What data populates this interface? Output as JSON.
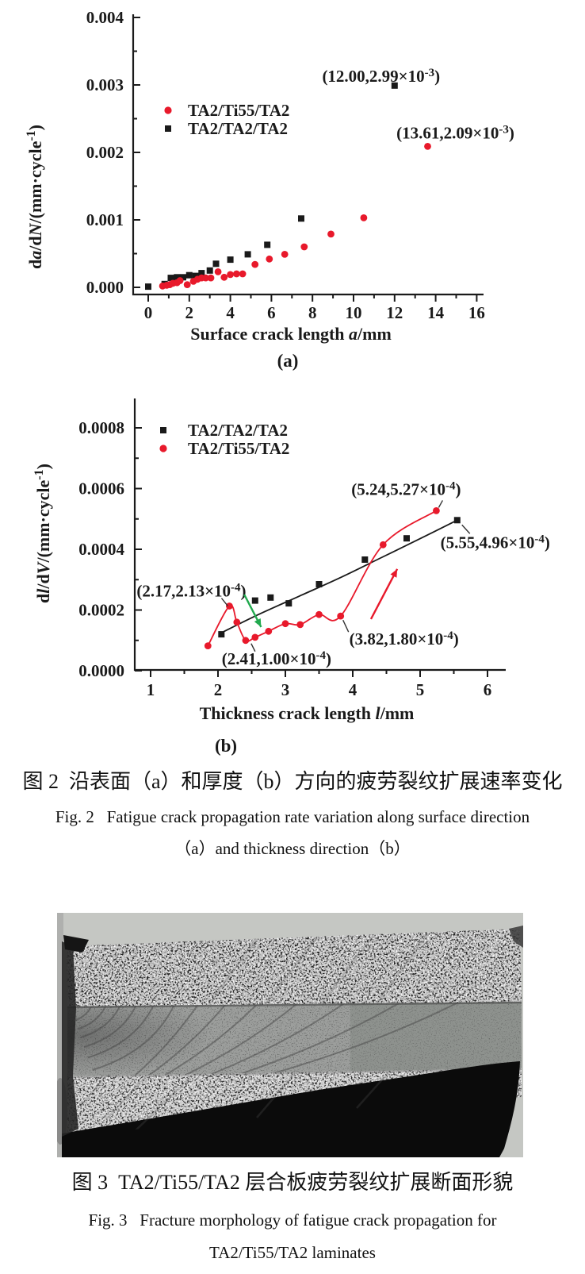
{
  "colors": {
    "red": "#e8192b",
    "black": "#1a1a1a",
    "green": "#21a94e",
    "annotation_line": "#333333"
  },
  "chart_data": [
    {
      "id": "a",
      "type": "scatter",
      "title": "",
      "sublabel": "(a)",
      "xlabel_parts": [
        {
          "t": "Surface crack length "
        },
        {
          "t": "a",
          "italic": true
        },
        {
          "t": "/mm"
        }
      ],
      "ylabel_parts": [
        {
          "t": "d"
        },
        {
          "t": "a",
          "italic": true
        },
        {
          "t": "/d"
        },
        {
          "t": "N",
          "italic": true
        },
        {
          "t": "/(mm·cycle"
        },
        {
          "t": "-1",
          "sup": true
        },
        {
          "t": ")"
        }
      ],
      "xlim": [
        0,
        16.3
      ],
      "ylim": [
        0,
        0.004
      ],
      "xticks": [
        0,
        2,
        4,
        6,
        8,
        10,
        12,
        14,
        16
      ],
      "xtick_labels": [
        "0",
        "2",
        "4",
        "6",
        "8",
        "10",
        "12",
        "14",
        "16"
      ],
      "xticks_minor": [
        1,
        3,
        5,
        7,
        9,
        11,
        13,
        15
      ],
      "yticks": [
        0,
        0.001,
        0.002,
        0.003,
        0.004
      ],
      "ytick_labels": [
        "0.000",
        "0.001",
        "0.002",
        "0.003",
        "0.004"
      ],
      "yticks_minor": [
        0.0005,
        0.0015,
        0.0025,
        0.0035
      ],
      "grid": false,
      "legend_position": "upper-left-inside",
      "legend": [
        {
          "label": "TA2/Ti55/TA2",
          "marker": "circle",
          "color": "red"
        },
        {
          "label": "TA2/TA2/TA2",
          "marker": "square",
          "color": "black"
        }
      ],
      "series": [
        {
          "name": "TA2/TA2/TA2",
          "marker": "square",
          "color": "black",
          "points": [
            [
              0,
              1e-05
            ],
            [
              0.8,
              5e-05
            ],
            [
              1.1,
              0.00014
            ],
            [
              1.4,
              0.00015
            ],
            [
              1.7,
              0.00015
            ],
            [
              2.0,
              0.00018
            ],
            [
              2.3,
              0.00017
            ],
            [
              2.6,
              0.00021
            ],
            [
              3.0,
              0.00025
            ],
            [
              3.3,
              0.00035
            ],
            [
              4.0,
              0.00041
            ],
            [
              4.85,
              0.00049
            ],
            [
              5.8,
              0.00063
            ],
            [
              7.45,
              0.00102
            ],
            [
              12.0,
              0.00299
            ]
          ]
        },
        {
          "name": "TA2/Ti55/TA2",
          "marker": "circle",
          "color": "red",
          "points": [
            [
              0.7,
              2e-05
            ],
            [
              0.9,
              3e-05
            ],
            [
              1.05,
              4e-05
            ],
            [
              1.2,
              6e-05
            ],
            [
              1.4,
              7e-05
            ],
            [
              1.55,
              0.0001
            ],
            [
              1.9,
              4e-05
            ],
            [
              2.2,
              9e-05
            ],
            [
              2.4,
              0.00012
            ],
            [
              2.6,
              0.00014
            ],
            [
              2.8,
              0.00014
            ],
            [
              3.05,
              0.00014
            ],
            [
              3.4,
              0.00023
            ],
            [
              3.7,
              0.00015
            ],
            [
              4.0,
              0.00019
            ],
            [
              4.3,
              0.0002
            ],
            [
              4.6,
              0.0002
            ],
            [
              5.2,
              0.00034
            ],
            [
              5.9,
              0.00042
            ],
            [
              6.65,
              0.00049
            ],
            [
              7.6,
              0.0006
            ],
            [
              8.9,
              0.00079
            ],
            [
              10.5,
              0.00103
            ],
            [
              13.61,
              0.00209
            ]
          ]
        }
      ],
      "annotations": [
        {
          "pre": "(12.00,2.99×10",
          "sup": "-3",
          "post": ")",
          "point": [
            12.0,
            0.00299
          ],
          "label_offset": [
            -17,
            -5
          ]
        },
        {
          "pre": "(13.61,2.09×10",
          "sup": "-3",
          "post": ")",
          "point": [
            13.61,
            0.00209
          ],
          "label_offset": [
            35,
            -10
          ]
        }
      ]
    },
    {
      "id": "b",
      "type": "scatter-line",
      "title": "",
      "sublabel": "(b)",
      "xlabel_parts": [
        {
          "t": "Thickness crack length "
        },
        {
          "t": "l",
          "italic": true
        },
        {
          "t": "/mm"
        }
      ],
      "ylabel_parts": [
        {
          "t": "d"
        },
        {
          "t": "l",
          "italic": true
        },
        {
          "t": "/d"
        },
        {
          "t": "V",
          "italic": true
        },
        {
          "t": "/(mm·cycle"
        },
        {
          "t": "-1",
          "sup": true
        },
        {
          "t": ")"
        }
      ],
      "xlim": [
        0.76,
        6.27
      ],
      "ylim": [
        0,
        0.0009
      ],
      "xticks": [
        1,
        2,
        3,
        4,
        5,
        6
      ],
      "xtick_labels": [
        "1",
        "2",
        "3",
        "4",
        "5",
        "6"
      ],
      "xticks_minor": [
        1.5,
        2.5,
        3.5,
        4.5,
        5.5
      ],
      "yticks": [
        0,
        0.0002,
        0.0004,
        0.0006,
        0.0008
      ],
      "ytick_labels": [
        "0.0000",
        "0.0002",
        "0.0004",
        "0.0006",
        "0.0008"
      ],
      "yticks_minor": [
        0.0001,
        0.0003,
        0.0005,
        0.0007
      ],
      "grid": false,
      "legend_position": "upper-left-inside",
      "legend": [
        {
          "label": "TA2/TA2/TA2",
          "marker": "square",
          "color": "black"
        },
        {
          "label": "TA2/Ti55/TA2",
          "marker": "circle",
          "color": "red"
        }
      ],
      "series": [
        {
          "name": "TA2/TA2/TA2",
          "marker": "square",
          "color": "black",
          "points": [
            [
              2.05,
              0.00012
            ],
            [
              2.55,
              0.000231
            ],
            [
              2.78,
              0.000241
            ],
            [
              3.05,
              0.000222
            ],
            [
              3.5,
              0.000285
            ],
            [
              4.18,
              0.000366
            ],
            [
              4.8,
              0.000436
            ],
            [
              5.55,
              0.000496
            ]
          ],
          "fit": [
            [
              2.05,
              0.000125
            ],
            [
              2.6,
              0.000185
            ],
            [
              3.2,
              0.000245
            ],
            [
              3.8,
              0.000305
            ],
            [
              4.4,
              0.00037
            ],
            [
              5.0,
              0.000435
            ],
            [
              5.55,
              0.000496
            ]
          ]
        },
        {
          "name": "TA2/Ti55/TA2",
          "marker": "circle",
          "color": "red",
          "points": [
            [
              1.85,
              8.2e-05
            ],
            [
              2.17,
              0.000213
            ],
            [
              2.28,
              0.00016
            ],
            [
              2.41,
              0.0001
            ],
            [
              2.55,
              0.00011
            ],
            [
              2.75,
              0.00013
            ],
            [
              3.0,
              0.000155
            ],
            [
              3.22,
              0.000152
            ],
            [
              3.5,
              0.000185
            ],
            [
              3.82,
              0.00018
            ],
            [
              4.45,
              0.000415
            ],
            [
              5.24,
              0.000527
            ]
          ],
          "fit": "points"
        }
      ],
      "annotations": [
        {
          "pre": "(2.17,2.13×10",
          "sup": "-4",
          "post": ")",
          "point": [
            2.17,
            0.000213
          ],
          "label_offset": [
            -48,
            -12
          ],
          "pointer": [
            [
              -10,
              -10
            ],
            [
              -2,
              0
            ]
          ]
        },
        {
          "pre": "(2.41,1.00×10",
          "sup": "-4",
          "post": ")",
          "point": [
            2.41,
            0.0001
          ],
          "label_offset": [
            39,
            30
          ],
          "pointer": [
            [
              12,
              14
            ],
            [
              7,
              4
            ]
          ]
        },
        {
          "pre": "(3.82,1.80×10",
          "sup": "-4",
          "post": ")",
          "point": [
            3.82,
            0.00018
          ],
          "label_offset": [
            80,
            36
          ],
          "pointer": [
            [
              10,
              20
            ],
            [
              3,
              5
            ]
          ]
        },
        {
          "pre": "(5.24,5.27×10",
          "sup": "-4",
          "post": ")",
          "point": [
            5.24,
            0.000527
          ],
          "label_offset": [
            -38,
            -20
          ],
          "pointer": [
            [
              8,
              -13
            ],
            [
              3,
              -4
            ]
          ]
        },
        {
          "pre": "(5.55,4.96×10",
          "sup": "-4",
          "post": ")",
          "point": [
            5.55,
            0.000496
          ],
          "label_offset": [
            48,
            35
          ],
          "pointer": [
            [
              6,
              6
            ],
            [
              16,
              17
            ]
          ]
        }
      ],
      "arrows": [
        {
          "from": [
            2.39,
            0.000251
          ],
          "to": [
            2.64,
            0.000144
          ],
          "color": "green"
        },
        {
          "from": [
            4.27,
            0.00017
          ],
          "to": [
            4.66,
            0.000335
          ],
          "color": "red"
        }
      ]
    }
  ],
  "figure2": {
    "caption_zh": "图 2  沿表面（a）和厚度（b）方向的疲劳裂纹扩展速率变化",
    "caption_en1": "Fig. 2   Fatigue crack propagation rate variation along surface direction",
    "caption_en2": "（a）and thickness direction（b）"
  },
  "figure3": {
    "photo_label": "fracture-photo",
    "caption_zh": "图 3  TA2/Ti55/TA2 层合板疲劳裂纹扩展断面形貌",
    "caption_en1": "Fig. 3   Fracture morphology of fatigue crack propagation for",
    "caption_en2": "TA2/Ti55/TA2 laminates"
  }
}
